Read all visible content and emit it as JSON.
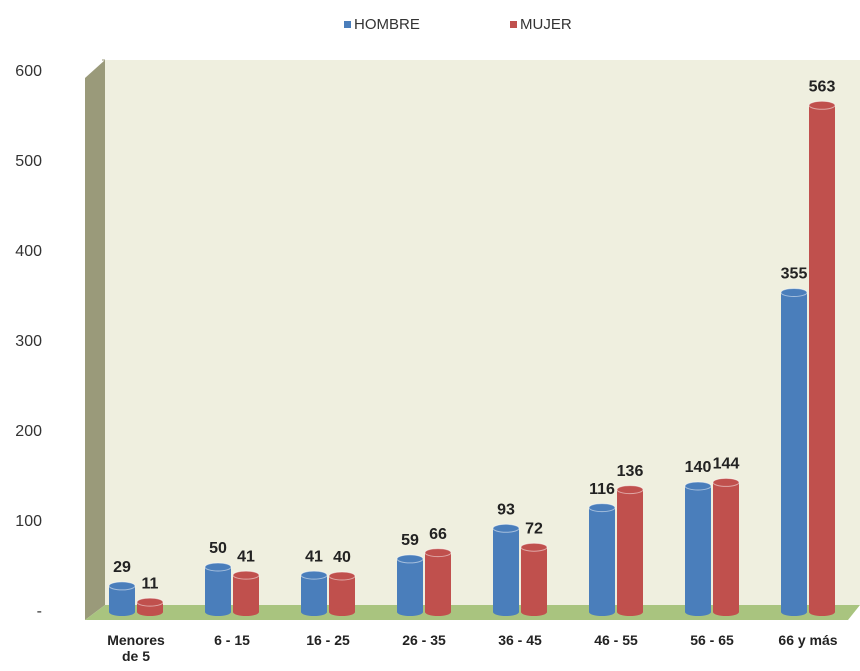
{
  "chart_data": {
    "type": "bar",
    "categories": [
      "Menores de 5",
      "6 - 15",
      "16 - 25",
      "26 - 35",
      "36 - 45",
      "46 - 55",
      "56 - 65",
      "66 y más"
    ],
    "series": [
      {
        "name": "HOMBRE",
        "color": "#4a7ebb",
        "values": [
          29,
          50,
          41,
          59,
          93,
          116,
          140,
          355
        ]
      },
      {
        "name": "MUJER",
        "color": "#c0504d",
        "values": [
          11,
          41,
          40,
          66,
          72,
          136,
          144,
          563
        ]
      }
    ],
    "ylim": [
      0,
      600
    ],
    "yticks": [
      {
        "value": 0,
        "label": "-"
      },
      100,
      200,
      300,
      400,
      500,
      600
    ],
    "legend": "top"
  }
}
